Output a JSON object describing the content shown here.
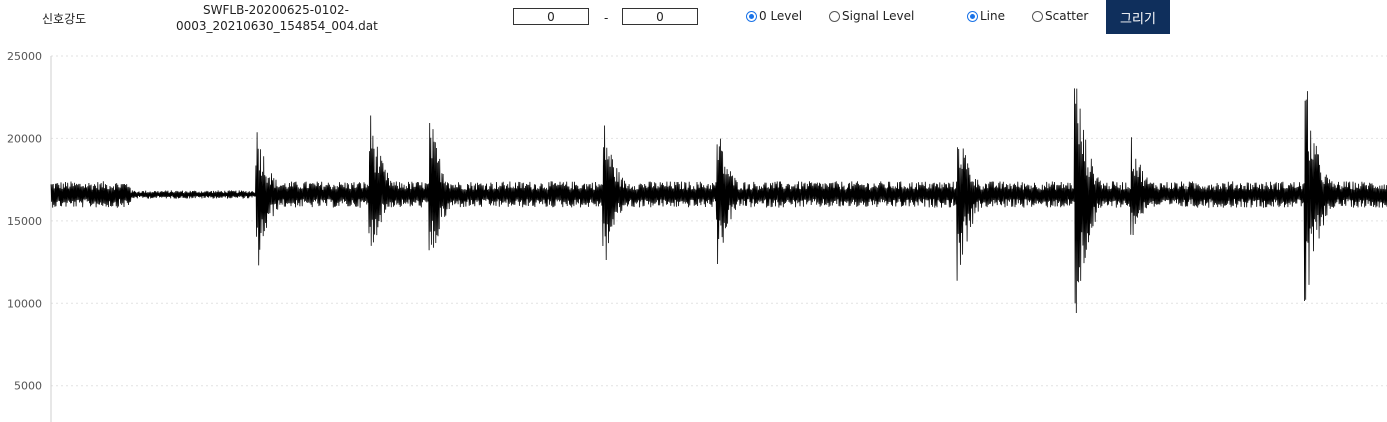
{
  "header": {
    "title": "신호강도",
    "filename": "SWFLB-20200625-0102-0003_20210630_154854_004.dat",
    "range_start": "0",
    "range_separator": "-",
    "range_end": "0",
    "level_options": [
      {
        "label": "0 Level",
        "selected": true
      },
      {
        "label": "Signal Level",
        "selected": false
      }
    ],
    "type_options": [
      {
        "label": "Line",
        "selected": true
      },
      {
        "label": "Scatter",
        "selected": false
      }
    ],
    "draw_button": "그리기",
    "accent_color": "#0f2f5c",
    "radio_color": "#1a73e8"
  },
  "chart_data": {
    "type": "line",
    "title": "",
    "xlabel": "",
    "ylabel": "",
    "ylim": [
      2800,
      25000
    ],
    "yticks": [
      25000,
      20000,
      15000,
      10000,
      5000
    ],
    "grid": "horizontal dotted",
    "baseline": 16600,
    "noise_amplitude": 800,
    "series": [
      {
        "color": "#000000",
        "flat_segments": [
          {
            "x_start": 0.06,
            "x_end": 0.155,
            "amplitude": 250
          }
        ],
        "bursts": [
          {
            "x": 0.155,
            "y_high": 20800,
            "y_low": 11800
          },
          {
            "x": 0.24,
            "y_high": 21600,
            "y_low": 12800
          },
          {
            "x": 0.285,
            "y_high": 21100,
            "y_low": 12000
          },
          {
            "x": 0.415,
            "y_high": 21000,
            "y_low": 12200
          },
          {
            "x": 0.5,
            "y_high": 20600,
            "y_low": 12300
          },
          {
            "x": 0.68,
            "y_high": 20900,
            "y_low": 11100
          },
          {
            "x": 0.768,
            "y_high": 23800,
            "y_low": 8400
          },
          {
            "x": 0.81,
            "y_high": 20100,
            "y_low": 13900
          },
          {
            "x": 0.94,
            "y_high": 23200,
            "y_low": 9000
          }
        ]
      }
    ]
  }
}
